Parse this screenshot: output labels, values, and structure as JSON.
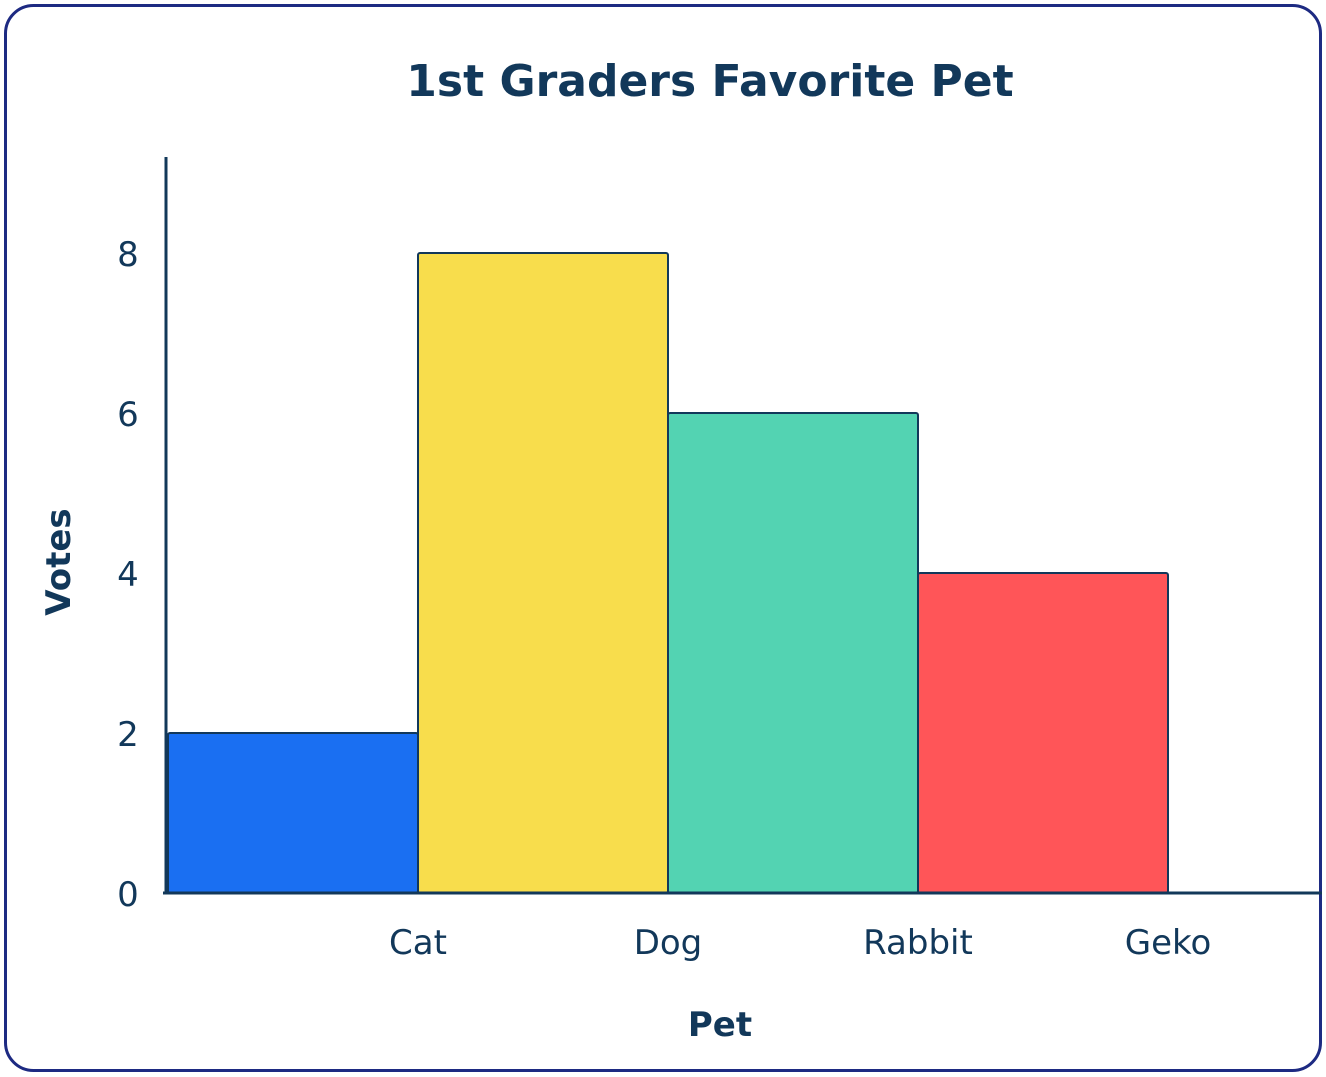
{
  "chart_data": {
    "type": "bar",
    "title": "1st Graders Favorite Pet",
    "xlabel": "Pet",
    "ylabel": "Votes",
    "categories": [
      "Cat",
      "Dog",
      "Rabbit",
      "Geko"
    ],
    "values": [
      2,
      8,
      6,
      4
    ],
    "colors": [
      "#1a6ff2",
      "#f8dd4c",
      "#53d3b2",
      "#ff5558"
    ],
    "yticks": [
      0,
      2,
      4,
      6,
      8
    ],
    "ylim": [
      0,
      9.2
    ],
    "grid": false,
    "legend": "none",
    "text_color": "#12385a",
    "frame_color": "#1d2a82"
  }
}
